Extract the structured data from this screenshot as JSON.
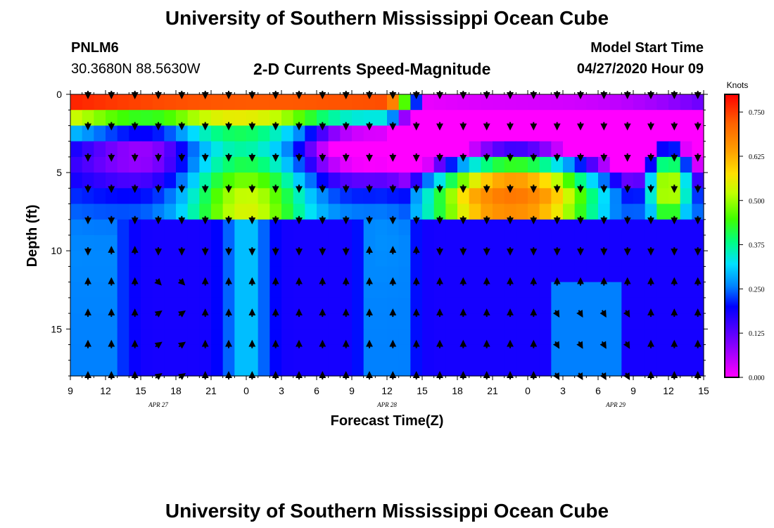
{
  "page": {
    "title_top": "University of Southern Mississippi Ocean Cube",
    "title_bottom": "University of Southern Mississippi Ocean Cube",
    "station_id": "PNLM6",
    "station_coords": "30.3680N 88.5630W",
    "subtitle": "2-D Currents Speed-Magnitude",
    "model_start_label": "Model Start Time",
    "model_start_value": "04/27/2020 Hour 09"
  },
  "chart_data": {
    "type": "heatmap",
    "title": "2-D Currents Speed-Magnitude",
    "xlabel": "Forecast Time(Z)",
    "ylabel": "Depth (ft)",
    "x_ticks": [
      "9",
      "12",
      "15",
      "18",
      "21",
      "0",
      "3",
      "6",
      "9",
      "12",
      "15",
      "18",
      "21",
      "0",
      "3",
      "6",
      "9",
      "12",
      "15"
    ],
    "date_labels": [
      {
        "text": "APR 27",
        "hour_index": 2.5
      },
      {
        "text": "APR 28",
        "hour_index": 9
      },
      {
        "text": "APR 29",
        "hour_index": 15.5
      }
    ],
    "y_ticks": [
      0,
      5,
      10,
      15
    ],
    "ylim": [
      0,
      18
    ],
    "xlim_hours": [
      0,
      54
    ],
    "colorbar": {
      "title": "Knots",
      "ticks": [
        "0.750",
        "0.625",
        "0.500",
        "0.375",
        "0.250",
        "0.125",
        "0.000"
      ],
      "range": [
        0,
        0.8
      ]
    },
    "speed_grid_note": "rows = depth levels 0..17 ft, columns = hourly forecast 9Z Apr27 to 15Z Apr29; speed in knots (estimated from colors)",
    "arrow_columns": [
      1,
      3,
      5,
      7,
      9,
      11,
      13,
      15,
      17,
      19,
      21,
      23,
      25,
      27,
      29,
      31,
      33,
      35,
      37,
      39,
      41,
      43,
      45,
      47,
      49,
      51,
      53
    ],
    "arrow_rows": [
      0,
      2,
      4,
      6,
      8,
      10,
      12,
      14,
      16,
      18
    ]
  }
}
